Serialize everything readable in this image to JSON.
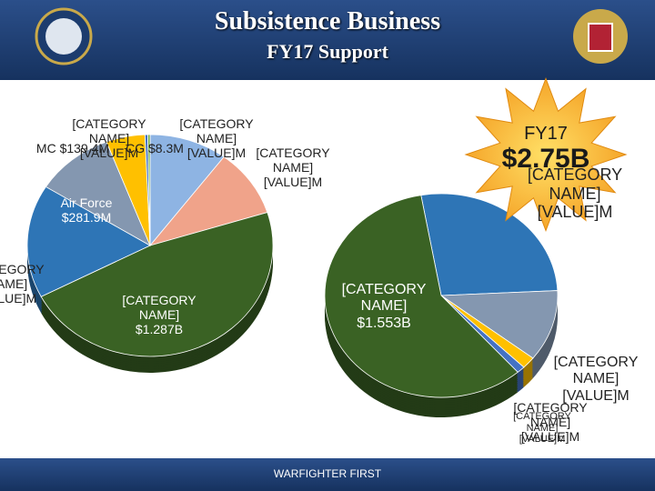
{
  "slide": {
    "title": "Subsistence Business",
    "subtitle": "FY17 Support",
    "footer": "WARFIGHTER FIRST",
    "callout": {
      "label": "FY17",
      "value": "$2.75B"
    }
  },
  "chart_data": [
    {
      "type": "pie",
      "categories": [
        "[CATEGORY NAME]",
        "[CATEGORY NAME]",
        "[CATEGORY NAME]",
        "[CATEGORY NAME]",
        "Air Force",
        "MC",
        "[CATEGORY NAME]",
        "CG"
      ],
      "values": [
        280,
        270,
        1287,
        450,
        281.9,
        139.4,
        10,
        8.3
      ],
      "value_labels": [
        "[VALUE]M",
        "[VALUE]M",
        "$1.287B",
        "[VALUE]M",
        "$281.9M",
        "$139.4M",
        "[VALUE]M",
        "$8.3M"
      ],
      "colors": [
        "#8eb4e3",
        "#f0a38a",
        "#3a6224",
        "#2e75b6",
        "#8497b0",
        "#ffc000",
        "#4472c4",
        "#70ad47"
      ]
    },
    {
      "type": "pie",
      "categories": [
        "[CATEGORY NAME]",
        "[CATEGORY NAME]",
        "[CATEGORY NAME]",
        "[CATEGORY NAME]",
        "[CATEGORY NAME]"
      ],
      "values": [
        715,
        300,
        50,
        30,
        1553
      ],
      "value_labels": [
        "[VALUE]M",
        "[VALUE]M",
        "[VALUE]M",
        "[VALUE]M",
        "$1.553B"
      ],
      "colors": [
        "#2e75b6",
        "#8497b0",
        "#ffc000",
        "#4472c4",
        "#3a6224"
      ]
    }
  ]
}
